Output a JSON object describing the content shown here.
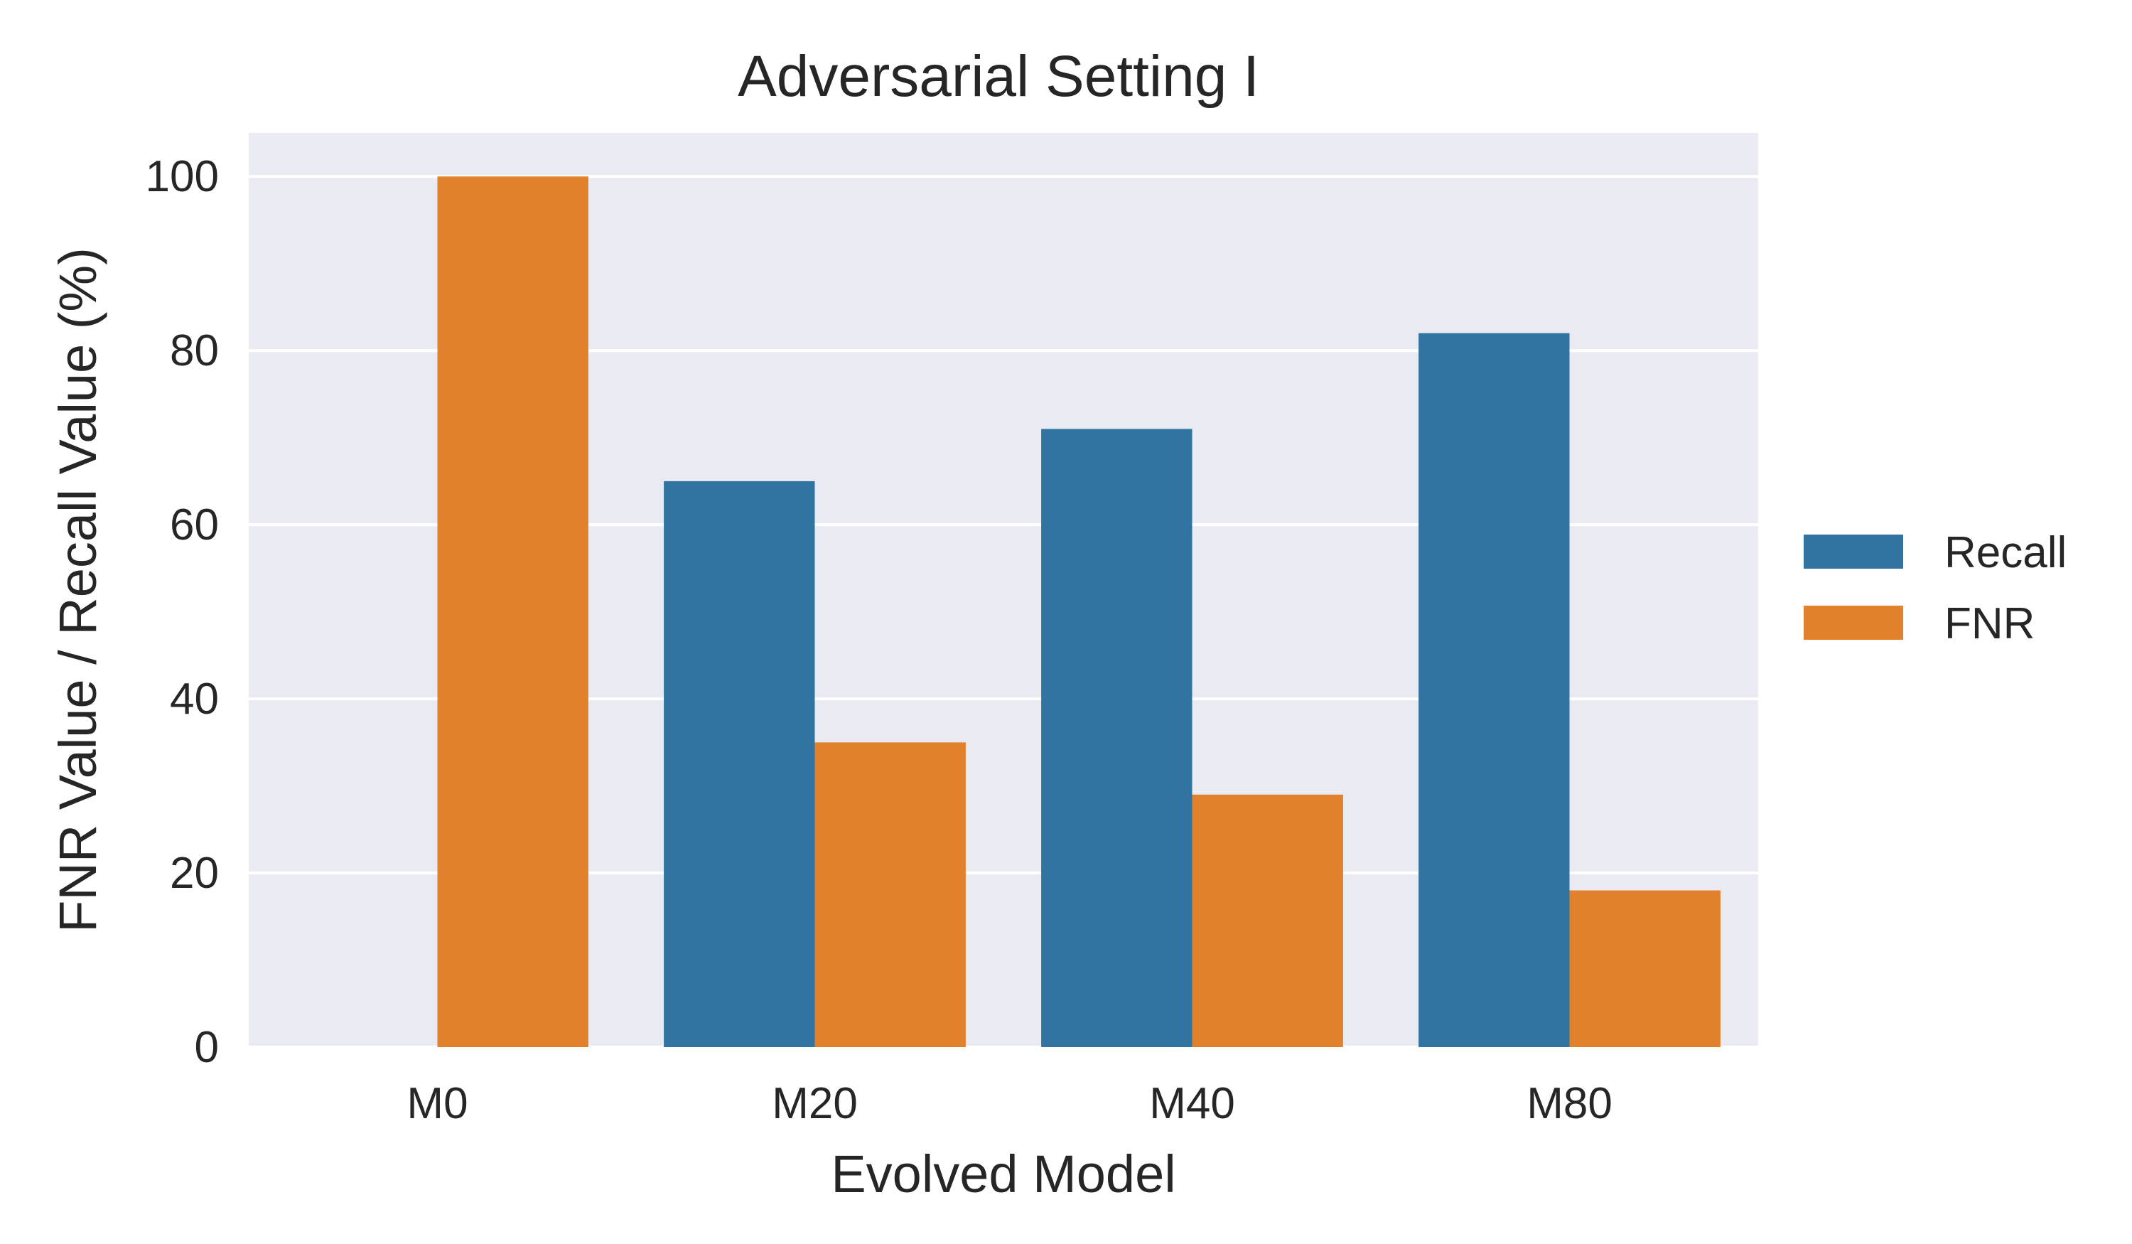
{
  "chart_data": {
    "type": "bar",
    "title": "Adversarial Setting I",
    "xlabel": "Evolved Model",
    "ylabel": "FNR Value / Recall Value (%)",
    "categories": [
      "M0",
      "M20",
      "M40",
      "M80"
    ],
    "ylim": [
      0,
      105
    ],
    "yticks": [
      0,
      20,
      40,
      60,
      80,
      100
    ],
    "grid": true,
    "legend_position": "right",
    "series": [
      {
        "name": "Recall",
        "color": "#3274a1",
        "values": [
          0,
          65,
          71,
          82
        ]
      },
      {
        "name": "FNR",
        "color": "#e1812c",
        "values": [
          100,
          35,
          29,
          18
        ]
      }
    ],
    "background_color": "#eaeaf2"
  }
}
